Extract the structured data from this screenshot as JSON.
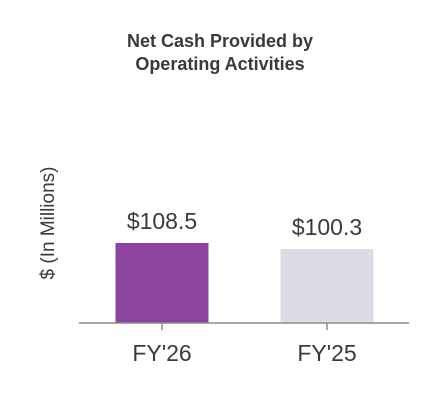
{
  "chart_data": {
    "type": "bar",
    "title_lines": [
      "Net Cash Provided by",
      "Operating Activities"
    ],
    "ylabel": "$ (In Millions)",
    "xlabel": "",
    "categories": [
      "FY'26",
      "FY'25"
    ],
    "values": [
      108.5,
      100.3
    ],
    "value_labels": [
      "$108.5",
      "$100.3"
    ],
    "bar_colors": [
      "#8b45a0",
      "#dcdce6"
    ],
    "ylim": [
      0,
      108.5
    ],
    "grid": false,
    "legend": "none"
  },
  "colors": {
    "title": "#3a3a3a",
    "text": "#3a3a3a",
    "axis": "#8c8c8c"
  }
}
